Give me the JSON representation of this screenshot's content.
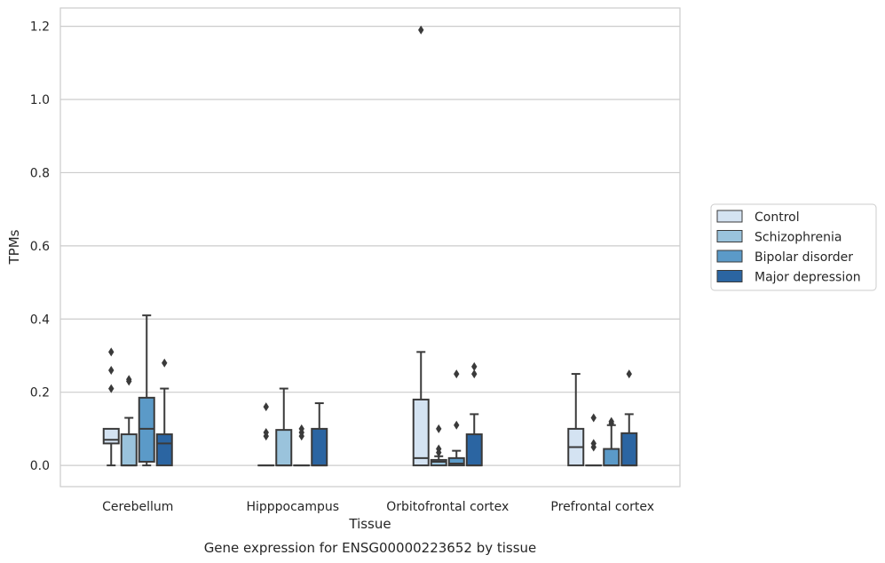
{
  "chart_data": {
    "type": "box",
    "title": "Gene expression for ENSG00000223652 by tissue",
    "xlabel": "Tissue",
    "ylabel": "TPMs",
    "ylim": [
      -0.058,
      1.25
    ],
    "yticks": [
      0.0,
      0.2,
      0.4,
      0.6,
      0.8,
      1.0,
      1.2
    ],
    "ytick_labels": [
      "0.0",
      "0.2",
      "0.4",
      "0.6",
      "0.8",
      "1.0",
      "1.2"
    ],
    "grid": "horizontal",
    "legend_position": "right",
    "categories": [
      "Cerebellum",
      "Hipppocampus",
      "Orbitofrontal cortex",
      "Prefrontal cortex"
    ],
    "series": [
      {
        "name": "Control",
        "color": "#d4e3f2",
        "boxes": [
          {
            "whislo": 0.0,
            "q1": 0.06,
            "med": 0.07,
            "q3": 0.1,
            "whishi": 0.1,
            "fliers": [
              0.21,
              0.26,
              0.31
            ]
          },
          {
            "whislo": 0.0,
            "q1": 0.0,
            "med": 0.0,
            "q3": 0.0,
            "whishi": 0.0,
            "fliers": [
              0.08,
              0.09,
              0.16
            ]
          },
          {
            "whislo": 0.0,
            "q1": 0.0,
            "med": 0.02,
            "q3": 0.18,
            "whishi": 0.31,
            "fliers": [
              1.19
            ]
          },
          {
            "whislo": 0.0,
            "q1": 0.0,
            "med": 0.05,
            "q3": 0.1,
            "whishi": 0.25,
            "fliers": []
          }
        ]
      },
      {
        "name": "Schizophrenia",
        "color": "#9ac3dc",
        "boxes": [
          {
            "whislo": 0.0,
            "q1": 0.0,
            "med": 0.0,
            "q3": 0.085,
            "whishi": 0.13,
            "fliers": [
              0.23,
              0.235
            ]
          },
          {
            "whislo": 0.0,
            "q1": 0.0,
            "med": 0.0,
            "q3": 0.097,
            "whishi": 0.21,
            "fliers": []
          },
          {
            "whislo": 0.0,
            "q1": 0.0,
            "med": 0.01,
            "q3": 0.015,
            "whishi": 0.025,
            "fliers": [
              0.035,
              0.045,
              0.1
            ]
          },
          {
            "whislo": 0.0,
            "q1": 0.0,
            "med": 0.0,
            "q3": 0.0,
            "whishi": 0.0,
            "fliers": [
              0.05,
              0.06,
              0.13
            ]
          }
        ]
      },
      {
        "name": "Bipolar disorder",
        "color": "#5b9ac8",
        "boxes": [
          {
            "whislo": 0.0,
            "q1": 0.01,
            "med": 0.1,
            "q3": 0.185,
            "whishi": 0.41,
            "fliers": []
          },
          {
            "whislo": 0.0,
            "q1": 0.0,
            "med": 0.0,
            "q3": 0.0,
            "whishi": 0.0,
            "fliers": [
              0.08,
              0.09,
              0.1
            ]
          },
          {
            "whislo": 0.0,
            "q1": 0.0,
            "med": 0.005,
            "q3": 0.02,
            "whishi": 0.04,
            "fliers": [
              0.11,
              0.25
            ]
          },
          {
            "whislo": 0.0,
            "q1": 0.0,
            "med": 0.0,
            "q3": 0.045,
            "whishi": 0.11,
            "fliers": [
              0.115,
              0.12
            ]
          }
        ]
      },
      {
        "name": "Major depression",
        "color": "#2b65a2",
        "boxes": [
          {
            "whislo": 0.0,
            "q1": 0.0,
            "med": 0.06,
            "q3": 0.085,
            "whishi": 0.21,
            "fliers": [
              0.28
            ]
          },
          {
            "whislo": 0.0,
            "q1": 0.0,
            "med": 0.0,
            "q3": 0.1,
            "whishi": 0.17,
            "fliers": []
          },
          {
            "whislo": 0.0,
            "q1": 0.0,
            "med": 0.0,
            "q3": 0.085,
            "whishi": 0.14,
            "fliers": [
              0.25,
              0.27
            ]
          },
          {
            "whislo": 0.0,
            "q1": 0.0,
            "med": 0.0,
            "q3": 0.088,
            "whishi": 0.14,
            "fliers": [
              0.25
            ]
          }
        ]
      }
    ]
  }
}
